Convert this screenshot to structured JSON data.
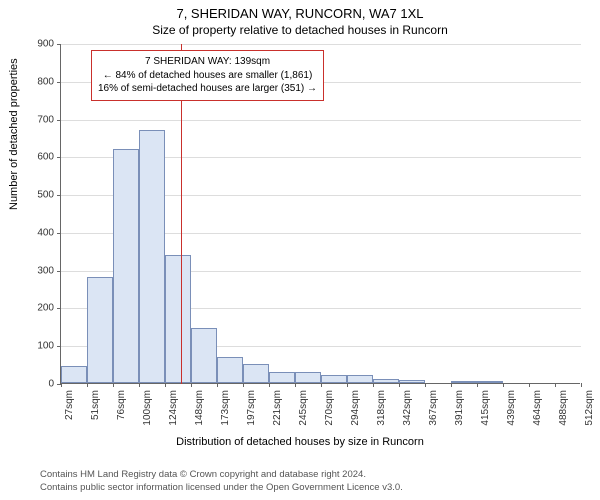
{
  "title": "7, SHERIDAN WAY, RUNCORN, WA7 1XL",
  "subtitle": "Size of property relative to detached houses in Runcorn",
  "ylabel": "Number of detached properties",
  "xlabel": "Distribution of detached houses by size in Runcorn",
  "footnote_line1": "Contains HM Land Registry data © Crown copyright and database right 2024.",
  "footnote_line2": "Contains public sector information licensed under the Open Government Licence v3.0.",
  "chart": {
    "type": "histogram",
    "y_min": 0,
    "y_max": 900,
    "y_tick_step": 100,
    "x_ticks": [
      "27sqm",
      "51sqm",
      "76sqm",
      "100sqm",
      "124sqm",
      "148sqm",
      "173sqm",
      "197sqm",
      "221sqm",
      "245sqm",
      "270sqm",
      "294sqm",
      "318sqm",
      "342sqm",
      "367sqm",
      "391sqm",
      "415sqm",
      "439sqm",
      "464sqm",
      "488sqm",
      "512sqm"
    ],
    "bar_values": [
      45,
      280,
      620,
      670,
      340,
      145,
      70,
      50,
      30,
      30,
      20,
      20,
      10,
      8,
      0,
      5,
      4,
      0,
      0,
      0
    ],
    "bar_fill": "#dbe5f4",
    "bar_stroke": "#7a8fb8",
    "grid_color": "#dddddd",
    "axis_color": "#666666",
    "background_color": "#ffffff",
    "bar_width_ratio": 1.0,
    "marker": {
      "position_sqm": 139,
      "x_min_sqm": 27,
      "x_max_sqm": 512,
      "color": "#c9302c"
    },
    "annotation": {
      "line1": "7 SHERIDAN WAY: 139sqm",
      "line2": "← 84% of detached houses are smaller (1,861)",
      "line3": "16% of semi-detached houses are larger (351) →",
      "border_color": "#c9302c",
      "text_color": "#000000",
      "background": "#ffffff",
      "fontsize": 10
    },
    "label_fontsize": 11,
    "tick_fontsize": 10
  }
}
